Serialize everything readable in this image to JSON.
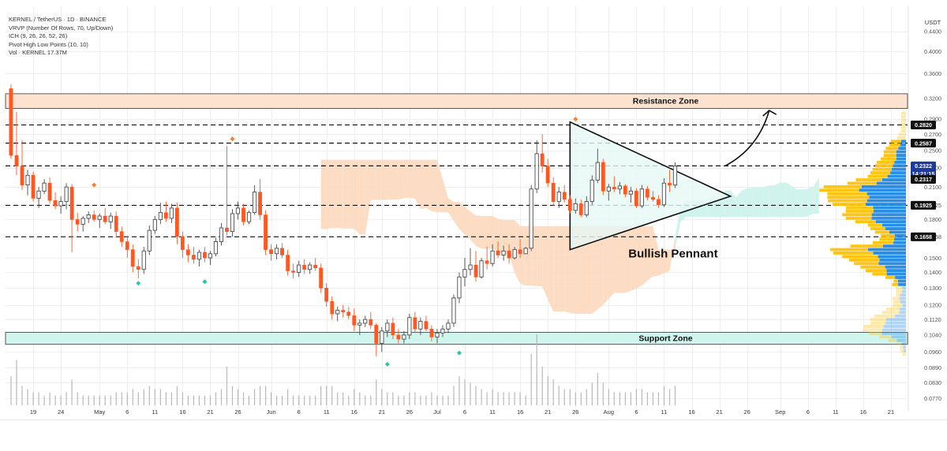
{
  "header": {
    "lines": [
      "KERNEL / TetherUS · 1D · BINANCE",
      "VRVP (Number Of Rows, 70, Up/Down)",
      "ICH (9, 26, 26, 52, 26)",
      "Pivot High Low Points (10, 10)",
      "Vol · KERNEL  17.37M"
    ]
  },
  "chart_data": {
    "type": "candlestick",
    "currency_label": "USDT",
    "y_axis": {
      "scale": "log",
      "range": [
        0.0745,
        0.47
      ],
      "ticks": [
        0.44,
        0.4,
        0.36,
        0.32,
        0.29,
        0.27,
        0.25,
        0.23,
        0.21,
        0.1925,
        0.18,
        0.1658,
        0.15,
        0.14,
        0.13,
        0.12,
        0.112,
        0.104,
        0.096,
        0.089,
        0.083,
        0.077
      ],
      "tick_labels": [
        "0.4400",
        "0.4000",
        "0.3600",
        "0.3200",
        "0.2900",
        "0.2700",
        "0.2500",
        "0.2300",
        "0.2100",
        "0.1925",
        "0.1800",
        "0.1658",
        "0.1500",
        "0.1400",
        "0.1300",
        "0.1200",
        "0.1120",
        "0.1040",
        "0.0960",
        "0.0890",
        "0.0830",
        "0.0770"
      ]
    },
    "x_axis": {
      "range": [
        "2025-04-14",
        "2025-09-24"
      ],
      "ticks": [
        "2025-04-19",
        "2025-04-24",
        "2025-05-01",
        "2025-05-06",
        "2025-05-11",
        "2025-05-16",
        "2025-05-21",
        "2025-05-26",
        "2025-06-01",
        "2025-06-06",
        "2025-06-11",
        "2025-06-16",
        "2025-06-21",
        "2025-06-26",
        "2025-07-01",
        "2025-07-06",
        "2025-07-11",
        "2025-07-16",
        "2025-07-21",
        "2025-07-26",
        "2025-08-01",
        "2025-08-06",
        "2025-08-11",
        "2025-08-16",
        "2025-08-21",
        "2025-08-26",
        "2025-09-01",
        "2025-09-06",
        "2025-09-11",
        "2025-09-16",
        "2025-09-21"
      ],
      "tick_labels": [
        "19",
        "24",
        "May",
        "6",
        "11",
        "16",
        "21",
        "26",
        "Jun",
        "6",
        "11",
        "16",
        "21",
        "26",
        "Jul",
        "6",
        "11",
        "16",
        "21",
        "26",
        "Aug",
        "6",
        "11",
        "16",
        "21",
        "26",
        "Sep",
        "6",
        "11",
        "16",
        "21"
      ]
    },
    "candles": {
      "start": "2025-04-15",
      "ohlc": [
        [
          0.335,
          0.342,
          0.24,
          0.244
        ],
        [
          0.244,
          0.3,
          0.222,
          0.232
        ],
        [
          0.232,
          0.262,
          0.207,
          0.212
        ],
        [
          0.212,
          0.228,
          0.202,
          0.222
        ],
        [
          0.222,
          0.226,
          0.196,
          0.199
        ],
        [
          0.199,
          0.21,
          0.19,
          0.206
        ],
        [
          0.206,
          0.218,
          0.203,
          0.214
        ],
        [
          0.214,
          0.22,
          0.194,
          0.197
        ],
        [
          0.197,
          0.205,
          0.189,
          0.192
        ],
        [
          0.192,
          0.201,
          0.185,
          0.196
        ],
        [
          0.196,
          0.214,
          0.189,
          0.21
        ],
        [
          0.21,
          0.213,
          0.154,
          0.18
        ],
        [
          0.18,
          0.186,
          0.17,
          0.176
        ],
        [
          0.176,
          0.183,
          0.17,
          0.181
        ],
        [
          0.181,
          0.187,
          0.177,
          0.184
        ],
        [
          0.184,
          0.188,
          0.178,
          0.18
        ],
        [
          0.18,
          0.185,
          0.173,
          0.183
        ],
        [
          0.183,
          0.19,
          0.176,
          0.178
        ],
        [
          0.178,
          0.186,
          0.172,
          0.183
        ],
        [
          0.183,
          0.187,
          0.165,
          0.17
        ],
        [
          0.17,
          0.174,
          0.158,
          0.162
        ],
        [
          0.162,
          0.166,
          0.15,
          0.156
        ],
        [
          0.156,
          0.16,
          0.14,
          0.144
        ],
        [
          0.144,
          0.149,
          0.136,
          0.142
        ],
        [
          0.142,
          0.158,
          0.139,
          0.155
        ],
        [
          0.155,
          0.175,
          0.152,
          0.171
        ],
        [
          0.171,
          0.183,
          0.168,
          0.18
        ],
        [
          0.18,
          0.195,
          0.176,
          0.186
        ],
        [
          0.186,
          0.196,
          0.178,
          0.181
        ],
        [
          0.181,
          0.194,
          0.177,
          0.19
        ],
        [
          0.19,
          0.195,
          0.16,
          0.166
        ],
        [
          0.166,
          0.17,
          0.15,
          0.156
        ],
        [
          0.156,
          0.16,
          0.147,
          0.152
        ],
        [
          0.152,
          0.158,
          0.146,
          0.149
        ],
        [
          0.149,
          0.156,
          0.144,
          0.154
        ],
        [
          0.154,
          0.158,
          0.147,
          0.15
        ],
        [
          0.15,
          0.155,
          0.145,
          0.153
        ],
        [
          0.153,
          0.165,
          0.151,
          0.162
        ],
        [
          0.162,
          0.177,
          0.159,
          0.173
        ],
        [
          0.173,
          0.255,
          0.167,
          0.17
        ],
        [
          0.17,
          0.189,
          0.166,
          0.185
        ],
        [
          0.185,
          0.196,
          0.18,
          0.19
        ],
        [
          0.19,
          0.194,
          0.175,
          0.178
        ],
        [
          0.178,
          0.188,
          0.176,
          0.186
        ],
        [
          0.186,
          0.212,
          0.184,
          0.205
        ],
        [
          0.205,
          0.218,
          0.18,
          0.184
        ],
        [
          0.184,
          0.188,
          0.152,
          0.156
        ],
        [
          0.156,
          0.16,
          0.148,
          0.153
        ],
        [
          0.153,
          0.16,
          0.149,
          0.157
        ],
        [
          0.157,
          0.161,
          0.15,
          0.152
        ],
        [
          0.152,
          0.156,
          0.138,
          0.141
        ],
        [
          0.141,
          0.146,
          0.136,
          0.14
        ],
        [
          0.14,
          0.148,
          0.137,
          0.145
        ],
        [
          0.145,
          0.149,
          0.139,
          0.142
        ],
        [
          0.142,
          0.147,
          0.139,
          0.145
        ],
        [
          0.145,
          0.15,
          0.141,
          0.143
        ],
        [
          0.143,
          0.146,
          0.127,
          0.13
        ],
        [
          0.13,
          0.133,
          0.119,
          0.122
        ],
        [
          0.122,
          0.125,
          0.112,
          0.115
        ],
        [
          0.115,
          0.119,
          0.111,
          0.117
        ],
        [
          0.117,
          0.12,
          0.113,
          0.116
        ],
        [
          0.116,
          0.119,
          0.112,
          0.114
        ],
        [
          0.114,
          0.118,
          0.106,
          0.109
        ],
        [
          0.109,
          0.112,
          0.104,
          0.11
        ],
        [
          0.11,
          0.114,
          0.108,
          0.112
        ],
        [
          0.112,
          0.116,
          0.107,
          0.109
        ],
        [
          0.109,
          0.11,
          0.094,
          0.1
        ],
        [
          0.1,
          0.108,
          0.096,
          0.106
        ],
        [
          0.106,
          0.112,
          0.103,
          0.11
        ],
        [
          0.11,
          0.113,
          0.102,
          0.104
        ],
        [
          0.104,
          0.107,
          0.1,
          0.102
        ],
        [
          0.102,
          0.106,
          0.1,
          0.104
        ],
        [
          0.104,
          0.115,
          0.102,
          0.113
        ],
        [
          0.113,
          0.116,
          0.105,
          0.107
        ],
        [
          0.107,
          0.113,
          0.104,
          0.111
        ],
        [
          0.111,
          0.114,
          0.106,
          0.107
        ],
        [
          0.107,
          0.109,
          0.101,
          0.103
        ],
        [
          0.103,
          0.107,
          0.1,
          0.105
        ],
        [
          0.105,
          0.109,
          0.103,
          0.107
        ],
        [
          0.107,
          0.112,
          0.105,
          0.11
        ],
        [
          0.11,
          0.126,
          0.108,
          0.124
        ],
        [
          0.124,
          0.14,
          0.121,
          0.137
        ],
        [
          0.137,
          0.15,
          0.131,
          0.142
        ],
        [
          0.142,
          0.157,
          0.138,
          0.145
        ],
        [
          0.145,
          0.155,
          0.134,
          0.137
        ],
        [
          0.137,
          0.15,
          0.136,
          0.148
        ],
        [
          0.148,
          0.158,
          0.142,
          0.146
        ],
        [
          0.146,
          0.16,
          0.144,
          0.155
        ],
        [
          0.155,
          0.162,
          0.15,
          0.152
        ],
        [
          0.152,
          0.159,
          0.148,
          0.155
        ],
        [
          0.155,
          0.16,
          0.146,
          0.15
        ],
        [
          0.15,
          0.158,
          0.149,
          0.156
        ],
        [
          0.156,
          0.164,
          0.15,
          0.153
        ],
        [
          0.153,
          0.158,
          0.154,
          0.157
        ],
        [
          0.157,
          0.212,
          0.155,
          0.208
        ],
        [
          0.208,
          0.262,
          0.204,
          0.246
        ],
        [
          0.246,
          0.27,
          0.225,
          0.232
        ],
        [
          0.232,
          0.24,
          0.21,
          0.214
        ],
        [
          0.214,
          0.22,
          0.192,
          0.196
        ],
        [
          0.196,
          0.21,
          0.19,
          0.205
        ],
        [
          0.205,
          0.212,
          0.195,
          0.198
        ],
        [
          0.198,
          0.202,
          0.185,
          0.188
        ],
        [
          0.188,
          0.199,
          0.185,
          0.194
        ],
        [
          0.194,
          0.198,
          0.182,
          0.184
        ],
        [
          0.184,
          0.201,
          0.182,
          0.196
        ],
        [
          0.196,
          0.222,
          0.193,
          0.217
        ],
        [
          0.217,
          0.252,
          0.214,
          0.236
        ],
        [
          0.236,
          0.24,
          0.202,
          0.206
        ],
        [
          0.206,
          0.213,
          0.197,
          0.21
        ],
        [
          0.21,
          0.221,
          0.205,
          0.208
        ],
        [
          0.208,
          0.215,
          0.203,
          0.211
        ],
        [
          0.211,
          0.213,
          0.2,
          0.203
        ],
        [
          0.203,
          0.21,
          0.195,
          0.206
        ],
        [
          0.206,
          0.209,
          0.19,
          0.192
        ],
        [
          0.192,
          0.212,
          0.19,
          0.208
        ],
        [
          0.208,
          0.211,
          0.197,
          0.2
        ],
        [
          0.2,
          0.206,
          0.196,
          0.198
        ],
        [
          0.198,
          0.202,
          0.19,
          0.193
        ],
        [
          0.193,
          0.219,
          0.191,
          0.214
        ],
        [
          0.214,
          0.228,
          0.205,
          0.212
        ],
        [
          0.212,
          0.236,
          0.209,
          0.232
        ]
      ]
    },
    "volume": [
      9,
      14,
      6,
      5,
      4,
      4,
      3,
      4,
      3,
      3,
      4,
      8,
      4,
      3,
      3,
      3,
      3,
      3,
      3,
      4,
      4,
      4,
      5,
      4,
      5,
      6,
      5,
      5,
      4,
      4,
      6,
      4,
      3,
      3,
      3,
      3,
      3,
      4,
      5,
      12,
      6,
      5,
      4,
      3,
      5,
      6,
      6,
      4,
      3,
      3,
      5,
      3,
      3,
      3,
      3,
      3,
      6,
      6,
      6,
      4,
      4,
      3,
      5,
      4,
      3,
      3,
      8,
      5,
      4,
      4,
      3,
      3,
      4,
      4,
      3,
      3,
      4,
      3,
      3,
      3,
      6,
      9,
      8,
      7,
      6,
      5,
      4,
      5,
      4,
      4,
      4,
      4,
      4,
      3,
      16,
      22,
      12,
      9,
      8,
      6,
      5,
      5,
      4,
      4,
      5,
      7,
      10,
      7,
      5,
      4,
      4,
      4,
      4,
      5,
      5,
      4,
      4,
      4,
      6,
      5,
      6
    ],
    "support_resistance_levels": [
      0.282,
      0.2587,
      0.2322,
      0.1925,
      0.1658
    ],
    "zones": [
      {
        "name": "Resistance Zone",
        "low": 0.305,
        "high": 0.327
      },
      {
        "name": "Support Zone",
        "low": 0.0995,
        "high": 0.1053
      }
    ],
    "pennant": {
      "label": "Bullish Pennant",
      "points": [
        [
          "2025-07-25",
          0.286
        ],
        [
          "2025-08-23",
          0.201
        ],
        [
          "2025-07-25",
          0.156
        ]
      ]
    },
    "pivot_highs": [
      [
        "2025-04-30",
        0.212
      ],
      [
        "2025-05-25",
        0.264
      ],
      [
        "2025-07-26",
        0.29
      ]
    ],
    "pivot_lows": [
      [
        "2025-05-08",
        0.133
      ],
      [
        "2025-05-20",
        0.134
      ],
      [
        "2025-06-22",
        0.0905
      ],
      [
        "2025-07-05",
        0.0955
      ]
    ],
    "price_tags": [
      {
        "label": "0.2820",
        "value": 0.282,
        "style": "dark"
      },
      {
        "label": "0.2587",
        "value": 0.2587,
        "style": "dark"
      },
      {
        "label": "0.2322",
        "value": 0.2322,
        "style": "blue"
      },
      {
        "label": "14:21:15",
        "value": 0.224,
        "style": "blue"
      },
      {
        "label": "0.2317",
        "value": 0.2178,
        "style": "dark"
      },
      {
        "label": "0.1925",
        "value": 0.1925,
        "style": "dark"
      },
      {
        "label": "0.1658",
        "value": 0.1658,
        "style": "dark"
      }
    ],
    "forecast_arrow": {
      "points": [
        [
          "2025-08-22",
          0.232
        ],
        [
          "2025-08-28",
          0.252
        ],
        [
          "2025-08-30",
          0.302
        ]
      ]
    },
    "colors": {
      "up": "#4a4a4a",
      "down": "#ff5722",
      "cloud": "#fcd6b8",
      "cloud_teal": "#c9f1ea",
      "resistance_zone": "#fde3cf",
      "support_zone": "#d0f5ee",
      "pennant_fill": "#e6f8f5",
      "vrvp_up": "#1e88e5",
      "vrvp_down": "#ffc107",
      "blue_tag": "#1e3a9e",
      "dark_tag": "#111111"
    }
  }
}
